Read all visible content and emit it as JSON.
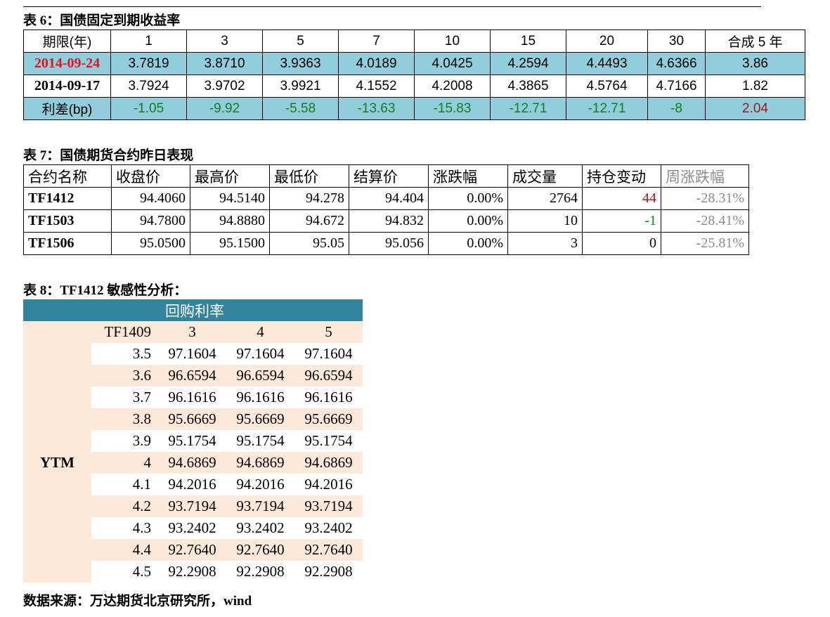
{
  "table6": {
    "title": "表 6：国债固定到期收益率",
    "header": [
      "期限(年)",
      "1",
      "3",
      "5",
      "7",
      "10",
      "15",
      "20",
      "30",
      "合成 5 年"
    ],
    "rows": [
      [
        "2014-09-24",
        "3.7819",
        "3.8710",
        "3.9363",
        "4.0189",
        "4.0425",
        "4.2594",
        "4.4493",
        "4.6366",
        "3.86"
      ],
      [
        "2014-09-17",
        "3.7924",
        "3.9702",
        "3.9921",
        "4.1552",
        "4.2008",
        "4.3865",
        "4.5764",
        "4.7166",
        "1.82"
      ],
      [
        "利差(bp)",
        "-1.05",
        "-9.92",
        "-5.58",
        "-13.63",
        "-15.83",
        "-12.71",
        "-12.71",
        "-8",
        "2.04"
      ]
    ]
  },
  "table7": {
    "title": "表 7：国债期货合约昨日表现",
    "header": [
      "合约名称",
      "收盘价",
      "最高价",
      "最低价",
      "结算价",
      "涨跌幅",
      "成交量",
      "持仓变动",
      "周涨跌幅"
    ],
    "rows": [
      [
        "TF1412",
        "94.4060",
        "94.5140",
        "94.278",
        "94.404",
        "0.00%",
        "2764",
        "44",
        "-28.31%"
      ],
      [
        "TF1503",
        "94.7800",
        "94.8880",
        "94.672",
        "94.832",
        "0.00%",
        "10",
        "-1",
        "-28.41%"
      ],
      [
        "TF1506",
        "95.0500",
        "95.1500",
        "95.05",
        "95.056",
        "0.00%",
        "3",
        "0",
        "-25.81%"
      ]
    ]
  },
  "table8": {
    "title": "表 8：TF1412 敏感性分析：",
    "group_header": "回购利率",
    "corner": "TF1409",
    "columns": [
      "3",
      "4",
      "5"
    ],
    "row_group": "YTM",
    "rows": [
      {
        "ytm": "3.5",
        "values": [
          "97.1604",
          "97.1604",
          "97.1604"
        ]
      },
      {
        "ytm": "3.6",
        "values": [
          "96.6594",
          "96.6594",
          "96.6594"
        ]
      },
      {
        "ytm": "3.7",
        "values": [
          "96.1616",
          "96.1616",
          "96.1616"
        ]
      },
      {
        "ytm": "3.8",
        "values": [
          "95.6669",
          "95.6669",
          "95.6669"
        ]
      },
      {
        "ytm": "3.9",
        "values": [
          "95.1754",
          "95.1754",
          "95.1754"
        ]
      },
      {
        "ytm": "4",
        "values": [
          "94.6869",
          "94.6869",
          "94.6869"
        ]
      },
      {
        "ytm": "4.1",
        "values": [
          "94.2016",
          "94.2016",
          "94.2016"
        ]
      },
      {
        "ytm": "4.2",
        "values": [
          "93.7194",
          "93.7194",
          "93.7194"
        ]
      },
      {
        "ytm": "4.3",
        "values": [
          "93.2402",
          "93.2402",
          "93.2402"
        ]
      },
      {
        "ytm": "4.4",
        "values": [
          "92.7640",
          "92.7640",
          "92.7640"
        ]
      },
      {
        "ytm": "4.5",
        "values": [
          "92.2908",
          "92.2908",
          "92.2908"
        ]
      }
    ]
  },
  "source": "数据来源：万达期货北京研究所，wind"
}
